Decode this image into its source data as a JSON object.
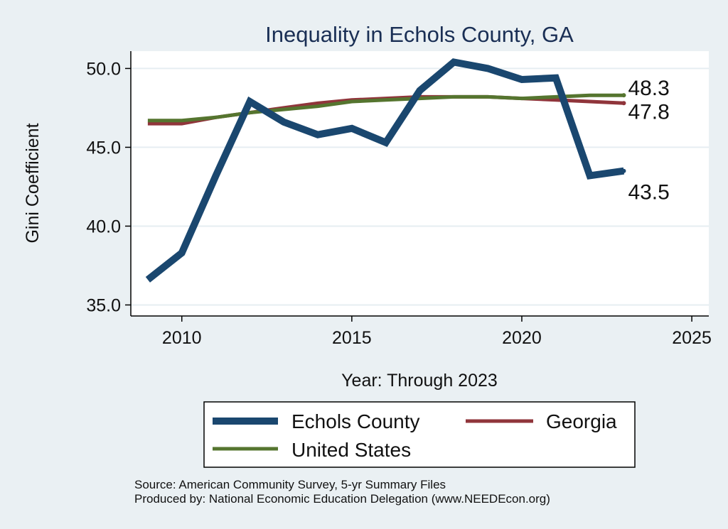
{
  "chart_data": {
    "type": "line",
    "title": "Inequality in Echols County, GA",
    "xlabel": "Year: Through 2023",
    "ylabel": "Gini Coefficient",
    "xlim": [
      2008.5,
      2025.5
    ],
    "ylim": [
      34.3,
      51.1
    ],
    "x_ticks": [
      2010,
      2015,
      2020,
      2025
    ],
    "x_tick_labels": [
      "2010",
      "2015",
      "2020",
      "2025"
    ],
    "y_ticks": [
      35,
      40,
      45,
      50
    ],
    "y_tick_labels": [
      "35.0",
      "40.0",
      "45.0",
      "50.0"
    ],
    "grid": true,
    "x": [
      2009,
      2010,
      2011,
      2012,
      2013,
      2014,
      2015,
      2016,
      2017,
      2018,
      2019,
      2020,
      2021,
      2022,
      2023
    ],
    "series": [
      {
        "name": "Echols County",
        "color": "#1a476f",
        "values": [
          36.6,
          38.3,
          43.2,
          47.9,
          46.6,
          45.8,
          46.2,
          45.3,
          48.6,
          50.4,
          50.0,
          49.3,
          49.4,
          43.2,
          43.5
        ],
        "end_label": "43.5"
      },
      {
        "name": "Georgia",
        "color": "#90353b",
        "values": [
          46.5,
          46.5,
          46.9,
          47.2,
          47.5,
          47.8,
          48.0,
          48.1,
          48.2,
          48.2,
          48.2,
          48.1,
          48.0,
          47.9,
          47.8
        ],
        "end_label": "47.8"
      },
      {
        "name": "United States",
        "color": "#55752f",
        "values": [
          46.7,
          46.7,
          46.9,
          47.2,
          47.4,
          47.6,
          47.9,
          48.0,
          48.1,
          48.2,
          48.2,
          48.1,
          48.2,
          48.3,
          48.3
        ],
        "end_label": "48.3"
      }
    ],
    "legend": {
      "placement": "bottom",
      "entries": [
        "Echols County",
        "Georgia",
        "United States"
      ]
    }
  },
  "footnote": {
    "source": "Source: American Community Survey, 5-yr Summary Files",
    "producer": "Produced by: National Economic Education Delegation (www.NEEDEcon.org)"
  }
}
